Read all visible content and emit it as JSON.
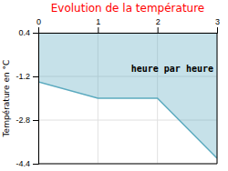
{
  "chart_data": {
    "type": "area",
    "title": "Evolution de la température",
    "y_label": "Température en °C",
    "annotation": "heure par heure",
    "x": [
      0,
      1,
      2,
      3
    ],
    "values": [
      -1.4,
      -2.0,
      -2.0,
      -4.2
    ],
    "color": "#5baabf",
    "xlim": [
      0,
      3
    ],
    "ylim": [
      -4.4,
      0.4
    ],
    "xticks": [
      0,
      1,
      2,
      3
    ],
    "yticks": [
      0.4,
      -1.2,
      -2.8,
      -4.4
    ],
    "grid": true
  }
}
